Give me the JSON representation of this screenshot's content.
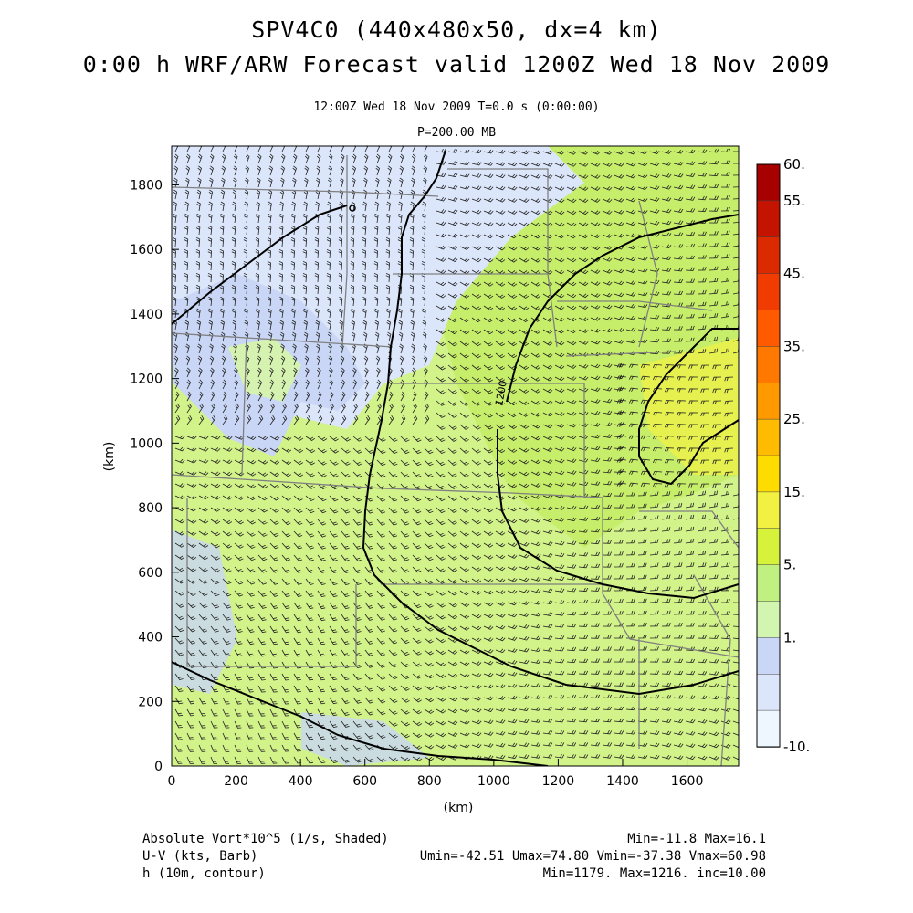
{
  "header": {
    "title_line1": "SPV4C0 (440x480x50, dx=4 km)",
    "title_line2": "0:00 h WRF/ARW Forecast valid 1200Z Wed 18 Nov 2009",
    "valid_line": "12:00Z Wed 18 Nov 2009     T=0.0 s (0:00:00)",
    "level_line": "P=200.00 MB"
  },
  "axes": {
    "x_label": "(km)",
    "y_label": "(km)",
    "x_ticks": [
      "0",
      "200",
      "400",
      "600",
      "800",
      "1000",
      "1200",
      "1400",
      "1600"
    ],
    "y_ticks": [
      "0",
      "200",
      "400",
      "600",
      "800",
      "1000",
      "1200",
      "1400",
      "1600",
      "1800"
    ],
    "x_range": [
      0,
      1760
    ],
    "y_range": [
      0,
      1920
    ]
  },
  "colorbar": {
    "labels": [
      "60.",
      "55.",
      "45.",
      "35.",
      "25.",
      "15.",
      "5.",
      "1.",
      "-10."
    ],
    "colors": [
      "#a60000",
      "#c41400",
      "#dc2a00",
      "#f03c00",
      "#ff5a00",
      "#ff7800",
      "#ff9900",
      "#ffbb00",
      "#ffdc00",
      "#f2f040",
      "#d6f23a",
      "#bff080",
      "#d2f5b0",
      "#c9d6f5",
      "#dce6fa",
      "#eef6ff"
    ]
  },
  "contour_labels": [
    "1200"
  ],
  "footer": {
    "left": [
      "Absolute Vort*10^5 (1/s, Shaded)",
      "U-V (kts, Barb)",
      "h (10m, contour)"
    ],
    "right": [
      "Min=-11.8 Max=16.1",
      "Umin=-42.51 Umax=74.80 Vmin=-37.38 Vmax=60.98",
      "Min=1179. Max=1216. inc=10.00"
    ]
  },
  "colors": {
    "land_green": "#d2f28a",
    "light_blue": "#dce6fa",
    "lavender": "#c9d6f5",
    "yellow_green": "#e4f05a",
    "contour": "#000000",
    "boundary": "#808080"
  }
}
